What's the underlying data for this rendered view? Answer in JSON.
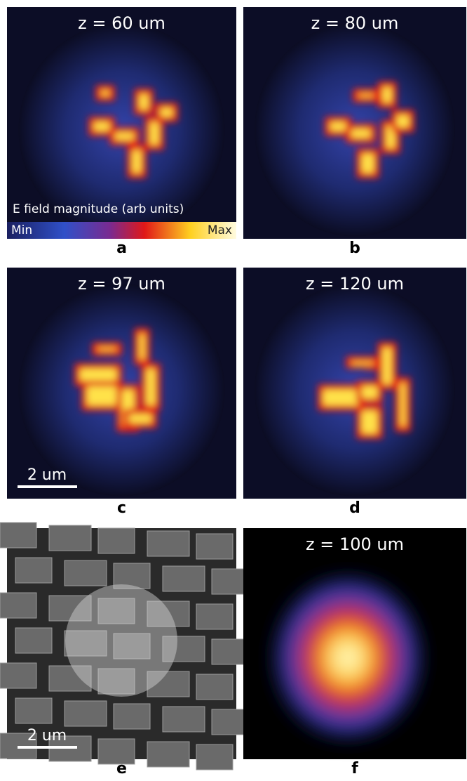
{
  "panels": [
    {
      "label": "a",
      "title": "z = 60 um"
    },
    {
      "label": "b",
      "title": "z = 80 um"
    },
    {
      "label": "c",
      "title": "z = 97 um"
    },
    {
      "label": "d",
      "title": "z = 120 um"
    },
    {
      "label": "e"
    },
    {
      "label": "f",
      "title": "z = 100 um"
    }
  ],
  "colorbar": {
    "label": "E field magnitude (arb units)",
    "min_label": "Min",
    "max_label": "Max"
  },
  "scale_bars": {
    "c": "2 um",
    "e": "2 um"
  }
}
